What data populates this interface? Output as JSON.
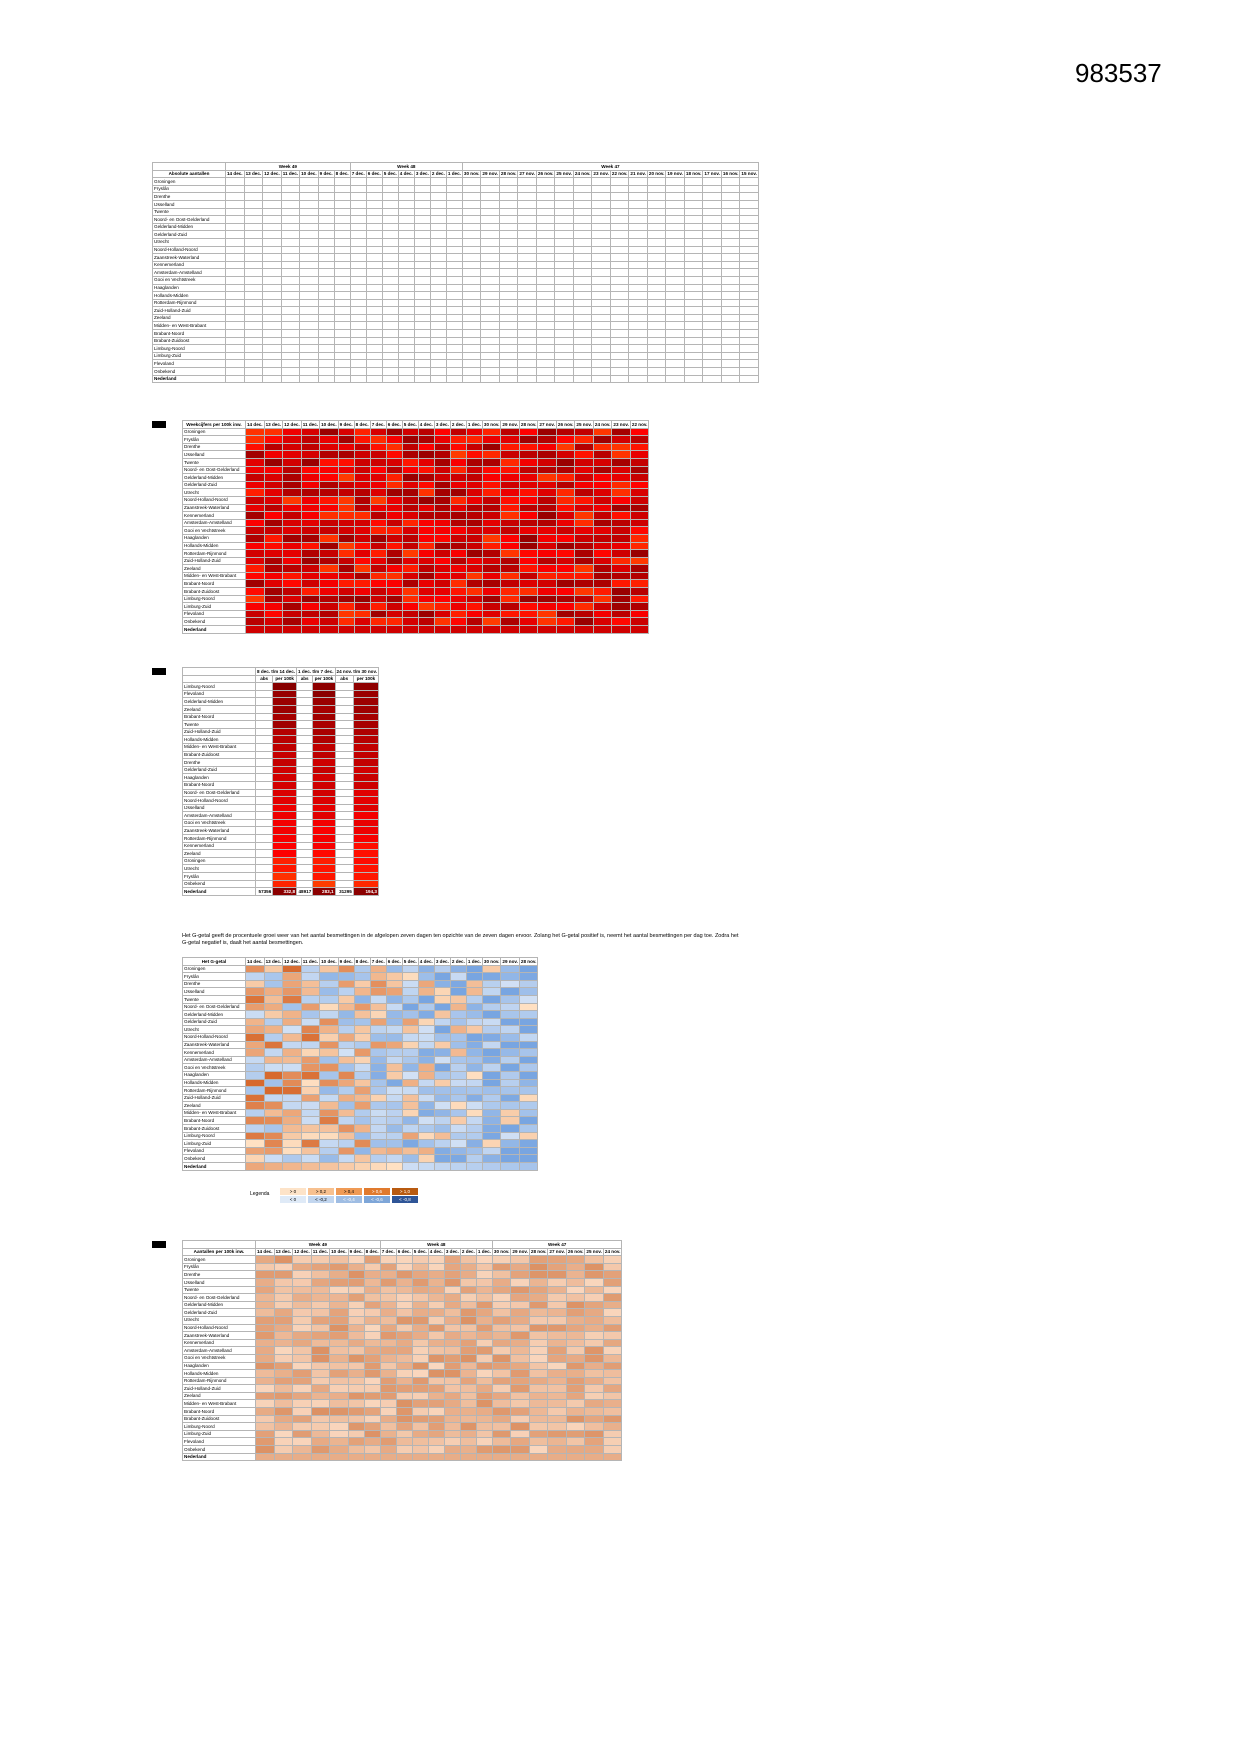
{
  "doc_id": "983537",
  "regions": [
    "Groningen",
    "Fryslân",
    "Drenthe",
    "IJsselland",
    "Twente",
    "Noord- en Oost-Gelderland",
    "Gelderland-Midden",
    "Gelderland-Zuid",
    "Utrecht",
    "Noord-Holland-Noord",
    "Zaanstreek-Waterland",
    "Kennemerland",
    "Amsterdam-Amstelland",
    "Gooi en Vechtstreek",
    "Haaglanden",
    "Hollands-Midden",
    "Rotterdam-Rijnmond",
    "Zuid-Holland-Zuid",
    "Zeeland",
    "Midden- en West-Brabant",
    "Brabant-Noord",
    "Brabant-Zuidoost",
    "Limburg-Noord",
    "Limburg-Zuid",
    "Flevoland",
    "Onbekend"
  ],
  "total_label": "Nederland",
  "section1": {
    "title": "Absolute aantallen",
    "sub": "# inwoners",
    "subtitle": "positief geteste",
    "weeks": [
      "Week 49",
      "Week 48",
      "Week 47"
    ],
    "dates": [
      "14 dec.",
      "13 dec.",
      "12 dec.",
      "11 dec.",
      "10 dec.",
      "9 dec.",
      "8 dec.",
      "7 dec.",
      "6 dec.",
      "5 dec.",
      "4 dec.",
      "3 dec.",
      "2 dec.",
      "1 dec.",
      "30 nov.",
      "29 nov.",
      "28 nov.",
      "27 nov.",
      "26 nov.",
      "25 nov.",
      "24 nov."
    ],
    "extra_dates": [
      "23 nov.",
      "22 nov.",
      "21 nov.",
      "20 nov.",
      "19 nov.",
      "18 nov.",
      "17 nov.",
      "16 nov.",
      "15 nov."
    ]
  },
  "section2": {
    "title": "Weekcijfers per 100k inw.",
    "dates": [
      "14 dec.",
      "13 dec.",
      "12 dec.",
      "11 dec.",
      "10 dec.",
      "9 dec.",
      "8 dec.",
      "7 dec.",
      "6 dec.",
      "5 dec.",
      "4 dec.",
      "3 dec.",
      "2 dec.",
      "1 dec.",
      "30 nov.",
      "29 nov.",
      "28 nov.",
      "27 nov.",
      "26 nov.",
      "25 nov.",
      "24 nov.",
      "23 nov.",
      "22 nov."
    ]
  },
  "section3": {
    "periods": [
      "8 dec. t/m 14 dec.",
      "1 dec. t/m 7 dec.",
      "24 nov. t/m 30 nov."
    ],
    "cols": [
      "abs",
      "per 100k",
      "abs",
      "per 100k",
      "abs",
      "per 100k"
    ],
    "regions": [
      "Limburg-Noord",
      "Flevoland",
      "Gelderland-Midden",
      "Zeeland",
      "Brabant-Noord",
      "Twente",
      "Zuid-Holland-Zuid",
      "Hollands-Midden",
      "Midden- en West-Brabant",
      "Brabant-Zuidoost",
      "Drenthe",
      "Gelderland-Zuid",
      "Haaglanden",
      "Brabant-Noord",
      "Noord- en Oost-Gelderland",
      "Noord-Holland-Noord",
      "IJsselland",
      "Amsterdam-Amstelland",
      "Gooi en Vechtstreek",
      "Zaanstreek-Waterland",
      "Rotterdam-Rijnmond",
      "Kennemerland",
      "Zeeland",
      "Groningen",
      "Utrecht",
      "Fryslân",
      "Onbekend"
    ],
    "total": [
      "57356",
      "332,8",
      "48917",
      "283,1",
      "31295",
      "194,3"
    ]
  },
  "section4": {
    "note": "Het G-getal geeft de procentuele groei weer van het aantal besmettingen in de afgelopen zeven dagen ten opzichte van de zeven dagen ervoor. Zolang het G-getal positief is, neemt het aantal besmettingen per dag toe. Zodra het G-getal negatief is, daalt het aantal besmettingen.",
    "title": "Het G-getal",
    "dates": [
      "14 dec.",
      "13 dec.",
      "12 dec.",
      "11 dec.",
      "10 dec.",
      "9 dec.",
      "8 dec.",
      "7 dec.",
      "6 dec.",
      "5 dec.",
      "4 dec.",
      "3 dec.",
      "2 dec.",
      "1 dec.",
      "30 nov.",
      "29 nov.",
      "28 nov."
    ],
    "legend_label": "Legenda",
    "legend": [
      [
        "> 0",
        "> 0,2",
        "> 0,4",
        "> 0,6",
        "> 1,0"
      ],
      [
        "< 0",
        "< -0,2",
        "< -0,4",
        "< -0,6",
        "< -0,8"
      ]
    ]
  },
  "section5": {
    "title": "Aantallen per 100k inw.",
    "subtitle": "positief geteste",
    "weeks": [
      "Week 49",
      "Week 48",
      "Week 47"
    ],
    "dates": [
      "14 dec.",
      "13 dec.",
      "12 dec.",
      "11 dec.",
      "10 dec.",
      "9 dec.",
      "8 dec.",
      "7 dec.",
      "6 dec.",
      "5 dec.",
      "4 dec.",
      "3 dec.",
      "2 dec.",
      "1 dec.",
      "30 nov.",
      "29 nov.",
      "28 nov.",
      "27 nov.",
      "26 nov.",
      "25 nov.",
      "24 nov."
    ]
  },
  "colors": {
    "section_header": "#ffd700",
    "heat_low": "#ffc000",
    "heat_mid": "#ff0000",
    "heat_high": "#8b0000",
    "g_pos": "#e07a2e",
    "g_neg": "#7ea6d8"
  }
}
